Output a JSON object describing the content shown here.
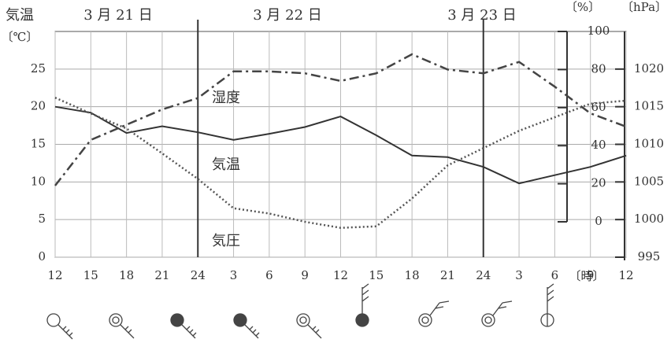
{
  "chart_data": {
    "type": "line",
    "dates": [
      "3 月 21 日",
      "3 月 22 日",
      "3 月 23 日"
    ],
    "y_label": "気温",
    "y_unit": "〔℃〕",
    "y2_unit": "〔%〕",
    "y3_unit": "〔hPa〕",
    "x_unit": "〔時〕",
    "categories": [
      "12",
      "15",
      "18",
      "21",
      "24",
      "3",
      "6",
      "9",
      "12",
      "15",
      "18",
      "21",
      "24",
      "3",
      "6",
      "9",
      "12"
    ],
    "ylim": [
      0,
      30
    ],
    "yticks": [
      0,
      5,
      10,
      15,
      20,
      25
    ],
    "y2lim": [
      -18.6,
      100
    ],
    "y2ticks": [
      0,
      20,
      40,
      60,
      80,
      100
    ],
    "y3lim": [
      995,
      1025
    ],
    "y3ticks": [
      995,
      1000,
      1005,
      1010,
      1015,
      1020
    ],
    "grid": true,
    "series": [
      {
        "name": "気温",
        "color": "#333333",
        "style": "solid",
        "axis": "y",
        "values": [
          20,
          19.2,
          16.5,
          17.4,
          16.6,
          15.6,
          16.4,
          17.3,
          18.7,
          16.2,
          13.5,
          13.3,
          12,
          9.8,
          10.9,
          12,
          13.5
        ]
      },
      {
        "name": "湿度",
        "color": "#444444",
        "style": "dashdot",
        "axis": "y2",
        "values": [
          19,
          43,
          51,
          59,
          65,
          79,
          79,
          78,
          74,
          78,
          88,
          80,
          78,
          84,
          71,
          57,
          50
        ]
      },
      {
        "name": "気圧",
        "color": "#555555",
        "style": "dotted",
        "axis": "y3",
        "values": [
          1016.2,
          1014.1,
          1012.1,
          1008.8,
          1005.4,
          1001.5,
          1000.8,
          999.7,
          998.9,
          999.1,
          1002.8,
          1007.2,
          1009.5,
          1011.8,
          1013.6,
          1015.4,
          1015.8
        ]
      }
    ]
  }
}
